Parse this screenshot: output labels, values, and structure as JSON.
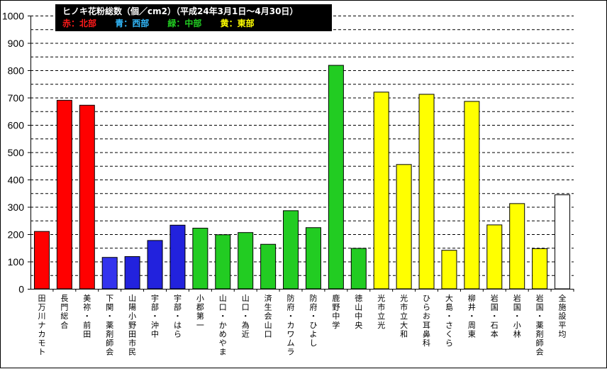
{
  "chart_data": {
    "type": "bar",
    "title": "ヒノキ花粉総数（個／cm2）（平成24年3月1日～4月30日）",
    "legend": [
      {
        "label": "赤：北部",
        "color": "#ff1a1a"
      },
      {
        "label": "青：西部",
        "color": "#33bbff"
      },
      {
        "label": "緑：中部",
        "color": "#22cc22"
      },
      {
        "label": "黄：東部",
        "color": "#ffff00"
      }
    ],
    "ylim": [
      0,
      1000
    ],
    "yticks": [
      0,
      100,
      200,
      300,
      400,
      500,
      600,
      700,
      800,
      900,
      1000
    ],
    "grid": true,
    "categories": [
      "田万川ナカモト",
      "長門総合",
      "美祢・前田",
      "下関・薬剤師会",
      "山陽小野田市民",
      "宇部・沖中",
      "宇部・はら",
      "小郡第一",
      "山口・かめやま",
      "山口・為近",
      "済生会山口",
      "防府・カワムラ",
      "防府・ひよし",
      "鹿野中学",
      "徳山中央",
      "光市立光",
      "光市立大和",
      "ひらお耳鼻科",
      "大島・さくら",
      "柳井・周東",
      "岩国・石本",
      "岩国・小林",
      "岩国・薬剤師会",
      "全施設平均"
    ],
    "values": [
      210,
      690,
      672,
      115,
      118,
      177,
      233,
      222,
      198,
      206,
      163,
      286,
      224,
      818,
      148,
      720,
      455,
      712,
      141,
      686,
      234,
      312,
      147,
      344
    ],
    "colors": [
      "#ff0000",
      "#ff0000",
      "#ff0000",
      "#3333ee",
      "#2222dd",
      "#2222dd",
      "#2222dd",
      "#22cc22",
      "#22cc22",
      "#22cc22",
      "#22cc22",
      "#22cc22",
      "#22cc22",
      "#22cc22",
      "#22cc22",
      "#ffff00",
      "#ffff00",
      "#ffff00",
      "#ffff00",
      "#ffff00",
      "#ffff00",
      "#ffff00",
      "#ffff00",
      "#ffffff"
    ]
  }
}
